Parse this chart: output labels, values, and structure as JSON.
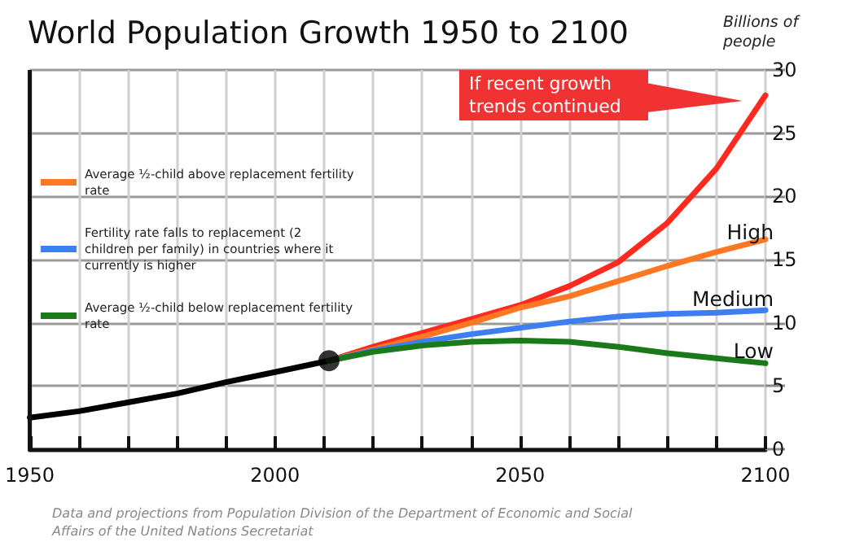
{
  "chart_data": {
    "type": "line",
    "title": "World Population Growth 1950 to 2100",
    "ylabel": "Billions of people",
    "series": [
      {
        "color": "#000000",
        "x": [
          1950,
          1960,
          1970,
          1980,
          1990,
          2000,
          2011
        ],
        "values": [
          2.5,
          3.0,
          3.7,
          4.4,
          5.3,
          6.1,
          7.0
        ]
      },
      {
        "type": "scatter",
        "color": "#000000",
        "x": [
          2011
        ],
        "values": [
          7.0
        ],
        "marker": "circle"
      },
      {
        "color": "#ff2a1f",
        "x": [
          2011,
          2020,
          2030,
          2040,
          2050,
          2060,
          2070,
          2080,
          2090,
          2100
        ],
        "values": [
          7.0,
          8.1,
          9.2,
          10.3,
          11.4,
          12.9,
          14.8,
          17.9,
          22.2,
          28.0
        ]
      },
      {
        "name": "Average ½-child above replacement fertility rate",
        "color": "#ff7722",
        "x": [
          2011,
          2020,
          2030,
          2040,
          2050,
          2060,
          2070,
          2080,
          2090,
          2100
        ],
        "values": [
          7.0,
          7.9,
          8.9,
          10.0,
          11.2,
          12.1,
          13.3,
          14.5,
          15.6,
          16.6
        ]
      },
      {
        "name": "Fertility rate falls to replacement (2 children per family) in countries where it currently is higher",
        "color": "#3d7ef0",
        "x": [
          2011,
          2020,
          2030,
          2040,
          2050,
          2060,
          2070,
          2080,
          2090,
          2100
        ],
        "values": [
          7.0,
          7.8,
          8.5,
          9.1,
          9.6,
          10.1,
          10.5,
          10.7,
          10.8,
          11.0
        ]
      },
      {
        "name": "Average ½-child below replacement fertility rate",
        "color": "#1a7a1a",
        "x": [
          2011,
          2020,
          2030,
          2040,
          2050,
          2060,
          2070,
          2080,
          2090,
          2100
        ],
        "values": [
          7.0,
          7.7,
          8.2,
          8.5,
          8.6,
          8.5,
          8.1,
          7.6,
          7.2,
          6.8
        ]
      }
    ],
    "xlim": [
      1950,
      2100
    ],
    "xticks": [
      1950,
      {
        "value": 1960,
        "label": null
      },
      {
        "value": 1970,
        "label": null
      },
      {
        "value": 1980,
        "label": null
      },
      {
        "value": 1990,
        "label": null
      },
      2000,
      {
        "value": 2010,
        "label": null
      },
      {
        "value": 2020,
        "label": null
      },
      {
        "value": 2030,
        "label": null
      },
      {
        "value": 2040,
        "label": null
      },
      2050,
      {
        "value": 2060,
        "label": null
      },
      {
        "value": 2070,
        "label": null
      },
      {
        "value": 2080,
        "label": null
      },
      {
        "value": 2090,
        "label": null
      },
      2100
    ],
    "ylim": [
      0,
      30
    ],
    "yticks": [
      0,
      5,
      10,
      15,
      20,
      25,
      30
    ],
    "grid": true,
    "legend": "top left",
    "marker": "none",
    "line_style": "solid",
    "annotations": [
      "If recent growth trends continued",
      "High",
      "Medium",
      "Low",
      "Data and projections from Population Division of the Department of Economic and Social Affairs of the United Nations Secretariat"
    ]
  }
}
